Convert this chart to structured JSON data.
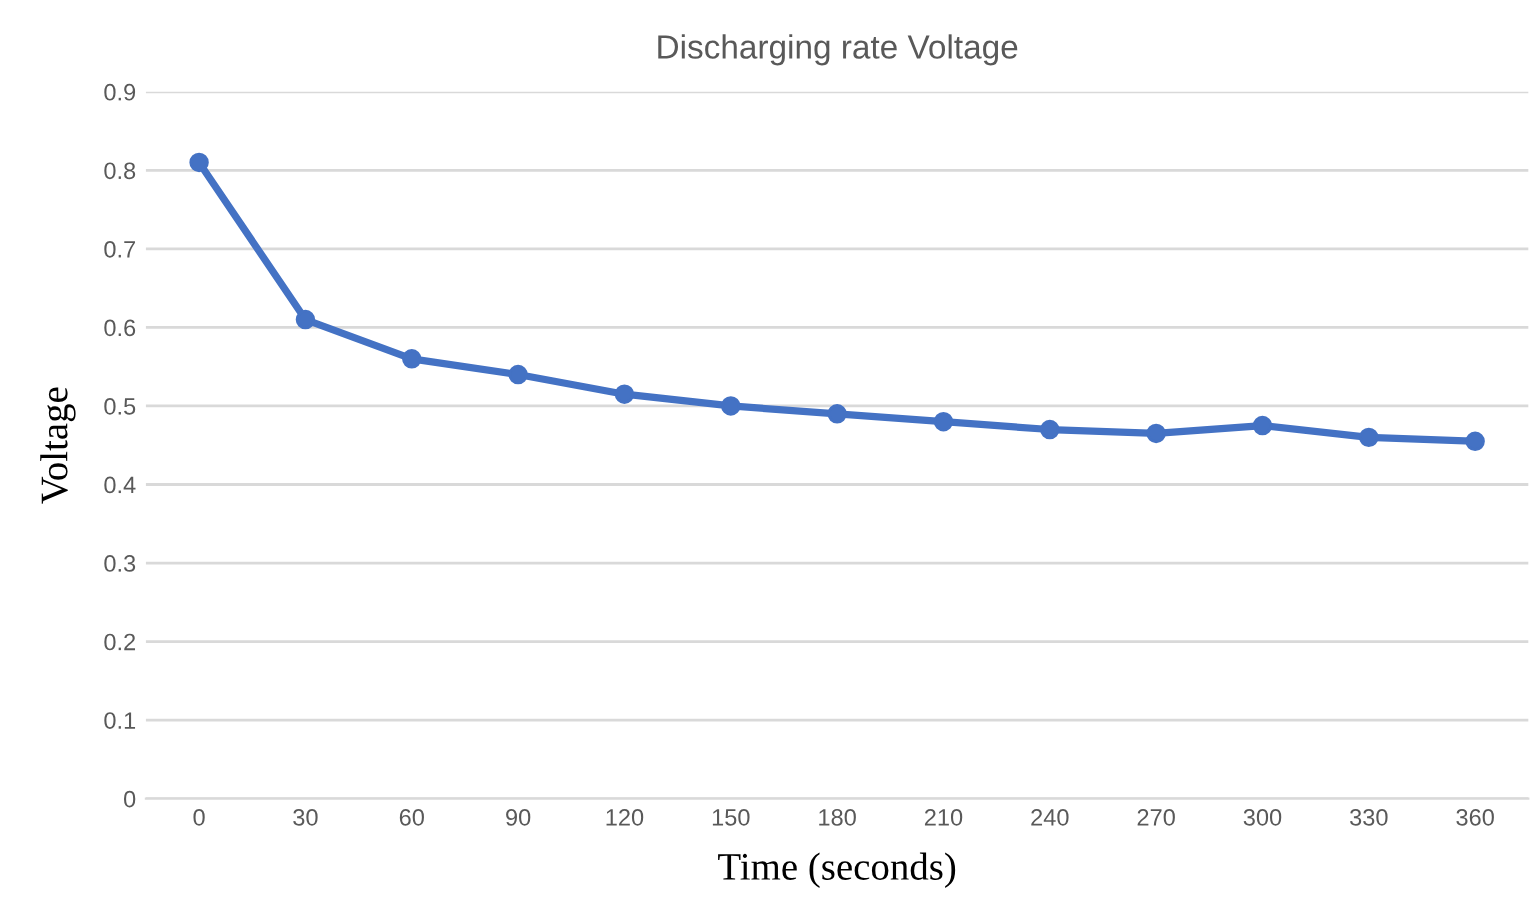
{
  "chart_data": {
    "type": "line",
    "title": "Discharging rate Voltage",
    "xlabel": "Time (seconds)",
    "ylabel": "Voltage",
    "categories": [
      "0",
      "30",
      "60",
      "90",
      "120",
      "150",
      "180",
      "210",
      "240",
      "270",
      "300",
      "330",
      "360"
    ],
    "series": [
      {
        "color": "#4472c4",
        "values": [
          0.81,
          0.61,
          0.56,
          0.54,
          0.515,
          0.5,
          0.49,
          0.48,
          0.47,
          0.465,
          0.475,
          0.46,
          0.455
        ]
      }
    ],
    "ylim": [
      0,
      0.9
    ],
    "yticks": [
      0,
      0.1,
      0.2,
      0.3,
      0.4,
      0.5,
      0.6,
      0.7,
      0.8,
      0.9
    ],
    "grid": "y",
    "marker": "circle",
    "line_style": "solid"
  }
}
